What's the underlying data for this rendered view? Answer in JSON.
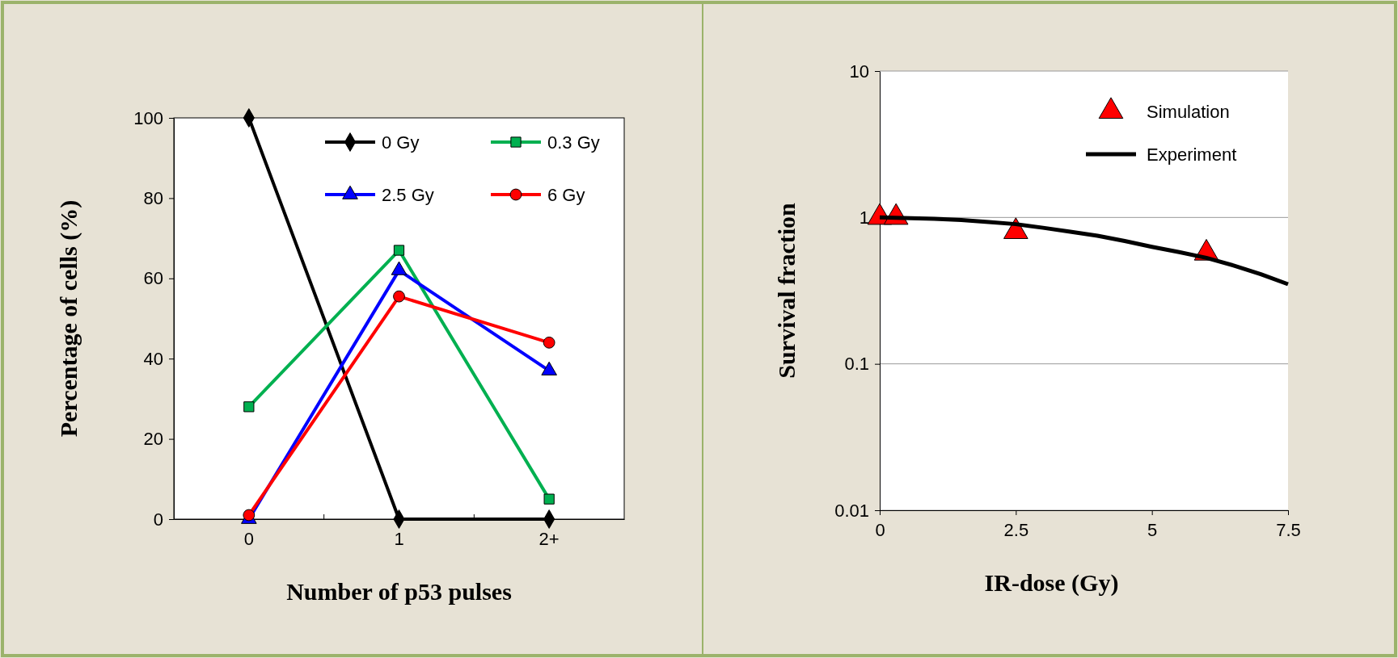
{
  "chart_data": [
    {
      "type": "line",
      "xlabel": "Number of p53 pulses",
      "ylabel": "Percentage of cells (%)",
      "categories": [
        "0",
        "1",
        "2+"
      ],
      "ylim": [
        0,
        100
      ],
      "yticks": [
        0,
        20,
        40,
        60,
        80,
        100
      ],
      "legend": "top right",
      "grid": false,
      "line_style": "solid",
      "series": [
        {
          "name": "0 Gy",
          "color": "#000000",
          "marker": "diamond",
          "values": [
            100,
            0,
            0
          ]
        },
        {
          "name": "0.3 Gy",
          "color": "#00b050",
          "marker": "square",
          "values": [
            28,
            67,
            5
          ]
        },
        {
          "name": "2.5 Gy",
          "color": "#0000ff",
          "marker": "triangle",
          "values": [
            0,
            62,
            37
          ]
        },
        {
          "name": "6 Gy",
          "color": "#ff0000",
          "marker": "circle",
          "values": [
            1,
            55.5,
            44
          ]
        }
      ]
    },
    {
      "type": "scatter",
      "xlabel": "IR-dose (Gy)",
      "ylabel": "Survival fraction",
      "log": "y",
      "xlim": [
        0,
        7.5
      ],
      "xticks": [
        0,
        2.5,
        5,
        7.5
      ],
      "ylim": [
        0.01,
        10
      ],
      "yticks": [
        0.01,
        0.1,
        1,
        10
      ],
      "grid": "y",
      "legend": "top right",
      "series": [
        {
          "name": "Simulation",
          "marker": "triangle",
          "color": "#ff0000",
          "x": [
            0,
            0.3,
            2.5,
            6
          ],
          "values": [
            1,
            1,
            0.8,
            0.57
          ]
        },
        {
          "name": "Experiment",
          "type": "line",
          "marker": "none",
          "color": "#000000",
          "x": [
            0,
            1,
            1.5,
            2,
            2.5,
            3,
            3.5,
            4,
            4.5,
            5,
            5.5,
            6,
            6.5,
            7,
            7.5
          ],
          "values": [
            1,
            0.98,
            0.96,
            0.93,
            0.9,
            0.85,
            0.8,
            0.75,
            0.69,
            0.63,
            0.58,
            0.53,
            0.47,
            0.41,
            0.35
          ]
        }
      ]
    }
  ]
}
